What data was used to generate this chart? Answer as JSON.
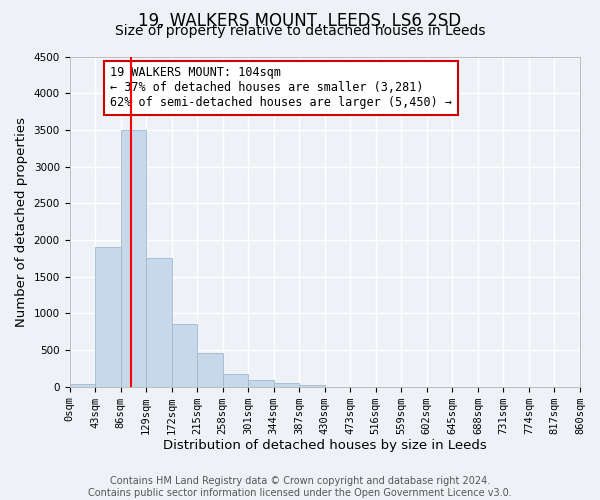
{
  "title": "19, WALKERS MOUNT, LEEDS, LS6 2SD",
  "subtitle": "Size of property relative to detached houses in Leeds",
  "xlabel": "Distribution of detached houses by size in Leeds",
  "ylabel": "Number of detached properties",
  "bin_labels": [
    "0sqm",
    "43sqm",
    "86sqm",
    "129sqm",
    "172sqm",
    "215sqm",
    "258sqm",
    "301sqm",
    "344sqm",
    "387sqm",
    "430sqm",
    "473sqm",
    "516sqm",
    "559sqm",
    "602sqm",
    "645sqm",
    "688sqm",
    "731sqm",
    "774sqm",
    "817sqm",
    "860sqm"
  ],
  "bar_values": [
    40,
    1910,
    3500,
    1760,
    860,
    460,
    180,
    90,
    55,
    30,
    0,
    0,
    0,
    0,
    0,
    0,
    0,
    0,
    0,
    0
  ],
  "bar_color": "#c8d8eb",
  "bar_edgecolor": "#a0b8d0",
  "ylim": [
    0,
    4500
  ],
  "yticks": [
    0,
    500,
    1000,
    1500,
    2000,
    2500,
    3000,
    3500,
    4000,
    4500
  ],
  "annotation_box_text": "19 WALKERS MOUNT: 104sqm\n← 37% of detached houses are smaller (3,281)\n62% of semi-detached houses are larger (5,450) →",
  "annotation_box_color": "#ffffff",
  "annotation_box_edgecolor": "#cc0000",
  "footer_text": "Contains HM Land Registry data © Crown copyright and database right 2024.\nContains public sector information licensed under the Open Government Licence v3.0.",
  "background_color": "#eef2f7",
  "grid_color": "#ffffff",
  "title_fontsize": 12,
  "subtitle_fontsize": 10,
  "axis_label_fontsize": 9.5,
  "tick_fontsize": 7.5,
  "annotation_fontsize": 8.5,
  "footer_fontsize": 7,
  "red_line_x": 2.419
}
